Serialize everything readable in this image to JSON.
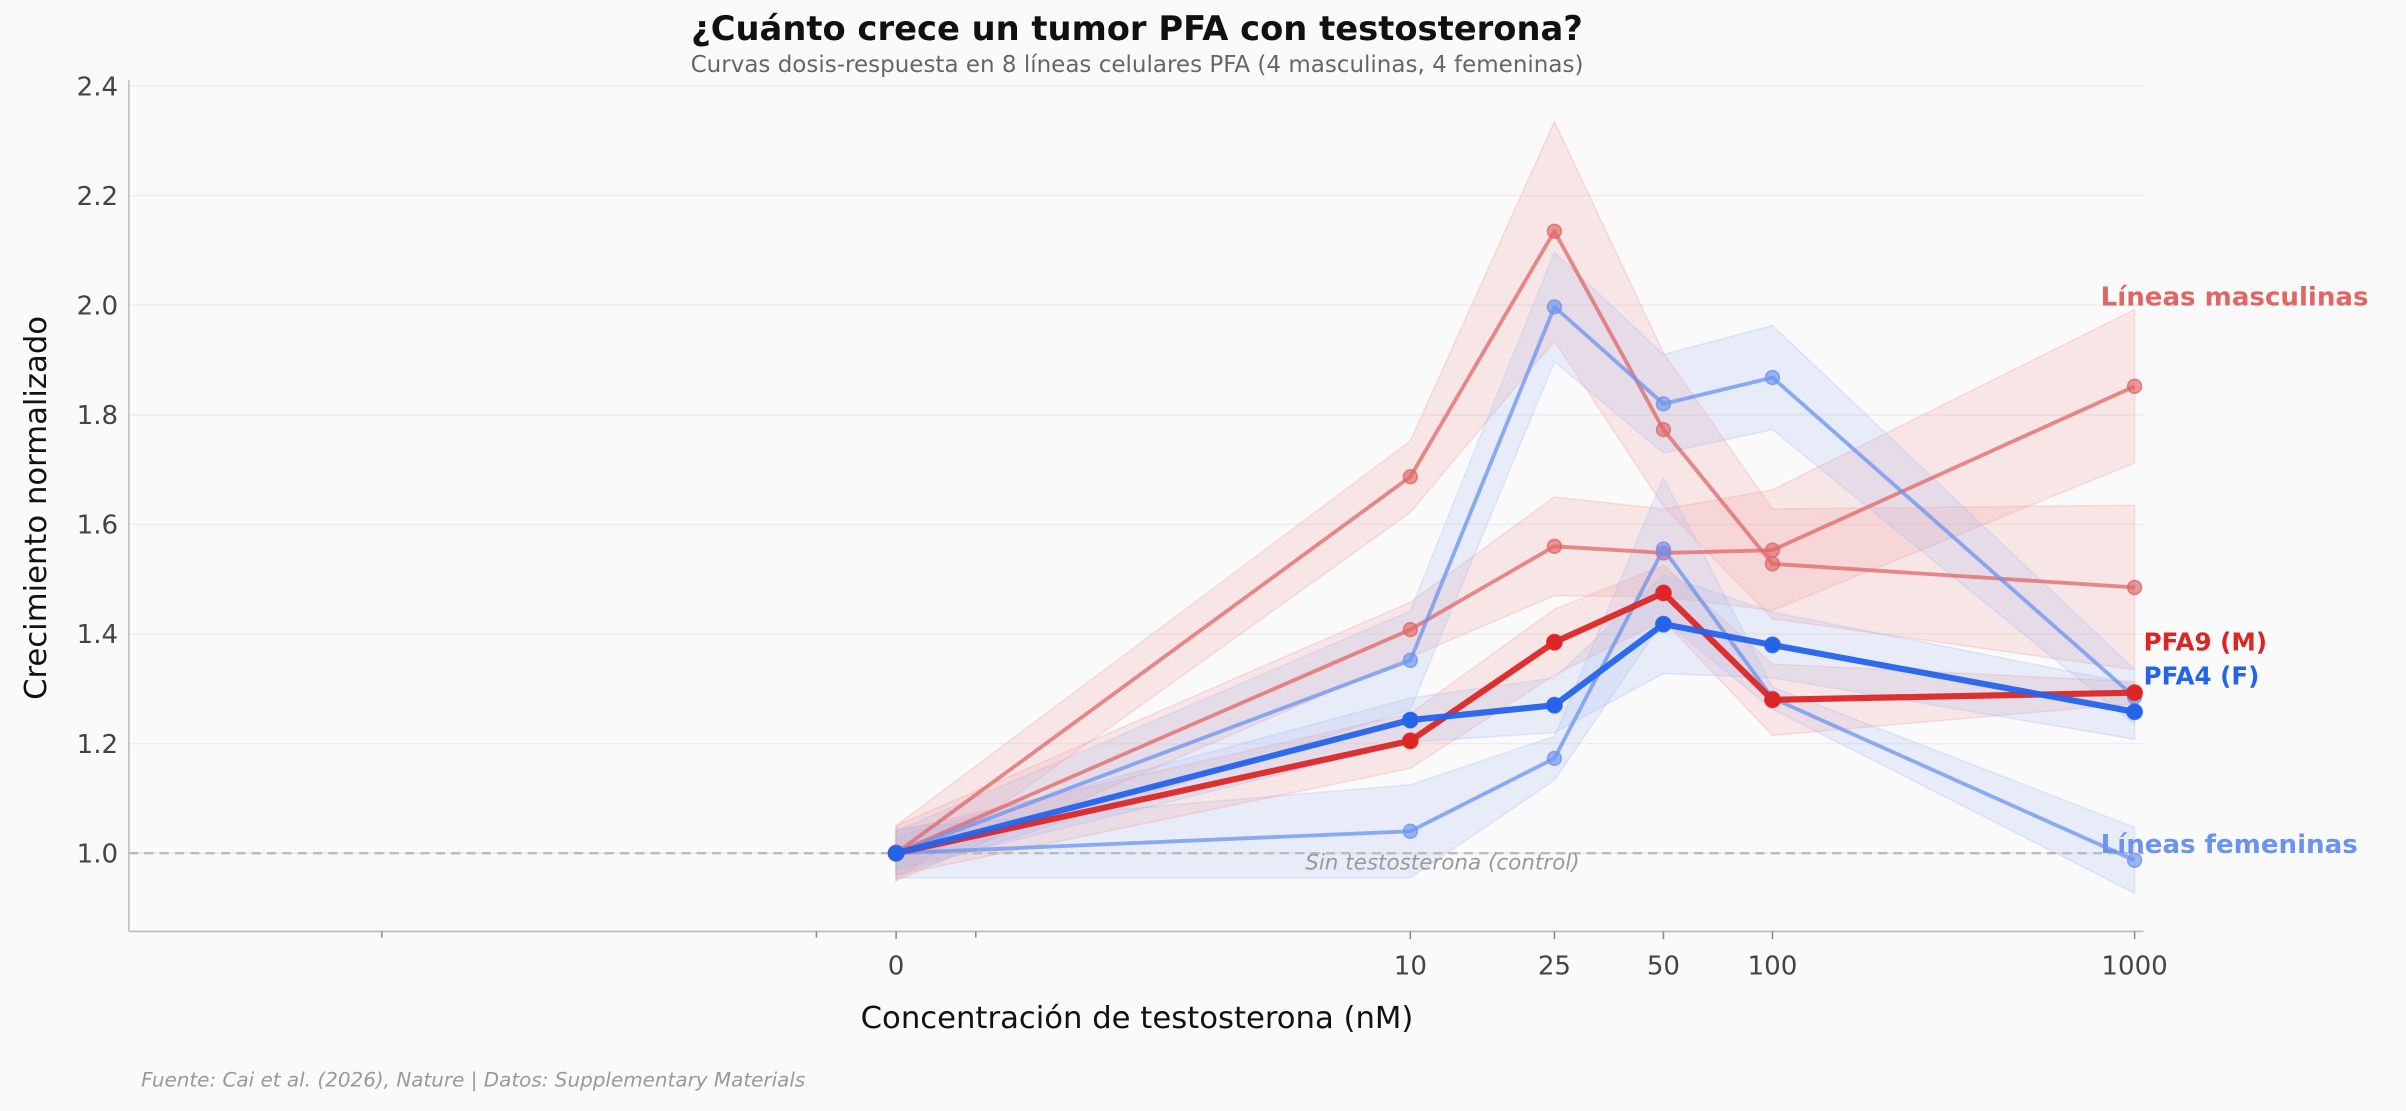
{
  "chart_data": {
    "type": "line",
    "title": "¿Cuánto crece un tumor PFA con testosterona?",
    "subtitle": "Curvas dosis-respuesta en 8 líneas celulares PFA (4 masculinas, 4 femeninas)",
    "xlabel": "Concentración de testosterona (nM)",
    "ylabel": "Crecimiento normalizado",
    "x_scale": "symlog",
    "x": [
      0,
      10,
      25,
      50,
      100,
      1000
    ],
    "x_tick_labels": [
      "0",
      "10",
      "25",
      "50",
      "100",
      "1000"
    ],
    "x_minor_ticks": [
      -10,
      -1,
      1
    ],
    "xlim": [
      -1000,
      1050
    ],
    "ylim": [
      0.857,
      2.41
    ],
    "y_ticks": [
      1.0,
      1.2,
      1.4,
      1.6,
      1.8,
      2.0,
      2.2,
      2.4
    ],
    "y_tick_labels": [
      "1.0",
      "1.2",
      "1.4",
      "1.6",
      "1.8",
      "2.0",
      "2.2",
      "2.4"
    ],
    "grid": "horizontal",
    "reference_line": {
      "y": 1.0,
      "label": "Sin testosterona (control)"
    },
    "colors": {
      "male": "#e06666",
      "female": "#6b93f0",
      "male_highlight": "#dc2626",
      "female_highlight": "#2563eb"
    },
    "series": [
      {
        "sex": "male",
        "highlight": false,
        "values": [
          1.0,
          1.687,
          2.135,
          1.773,
          1.528,
          1.485
        ],
        "ci": [
          0.05,
          0.065,
          0.2,
          0.14,
          0.1,
          0.15
        ]
      },
      {
        "sex": "male",
        "highlight": false,
        "values": [
          1.0,
          1.408,
          1.56,
          1.548,
          1.553,
          1.852
        ],
        "ci": [
          0.05,
          0.05,
          0.09,
          0.08,
          0.11,
          0.14
        ]
      },
      {
        "sex": "female",
        "highlight": false,
        "values": [
          1.0,
          1.352,
          1.997,
          1.82,
          1.868,
          1.285
        ],
        "ci": [
          0.04,
          0.09,
          0.1,
          0.09,
          0.095,
          0.05
        ]
      },
      {
        "sex": "female",
        "highlight": false,
        "values": [
          1.0,
          1.04,
          1.173,
          1.555,
          1.283,
          0.987
        ],
        "ci": [
          0.045,
          0.085,
          0.04,
          0.13,
          0.02,
          0.06
        ]
      },
      {
        "sex": "male",
        "highlight": true,
        "name": "PFA9 (M)",
        "values": [
          1.0,
          1.205,
          1.385,
          1.475,
          1.28,
          1.293
        ],
        "ci": [
          0.04,
          0.05,
          0.06,
          0.05,
          0.065,
          0.02
        ]
      },
      {
        "sex": "female",
        "highlight": true,
        "name": "PFA4 (F)",
        "values": [
          1.0,
          1.243,
          1.27,
          1.418,
          1.38,
          1.258
        ],
        "ci": [
          0.03,
          0.04,
          0.05,
          0.09,
          0.06,
          0.05
        ]
      }
    ],
    "group_labels": {
      "male": "Líneas masculinas",
      "female": "Líneas femeninas"
    }
  },
  "footer": "Fuente: Cai et al. (2026), Nature | Datos: Supplementary Materials"
}
